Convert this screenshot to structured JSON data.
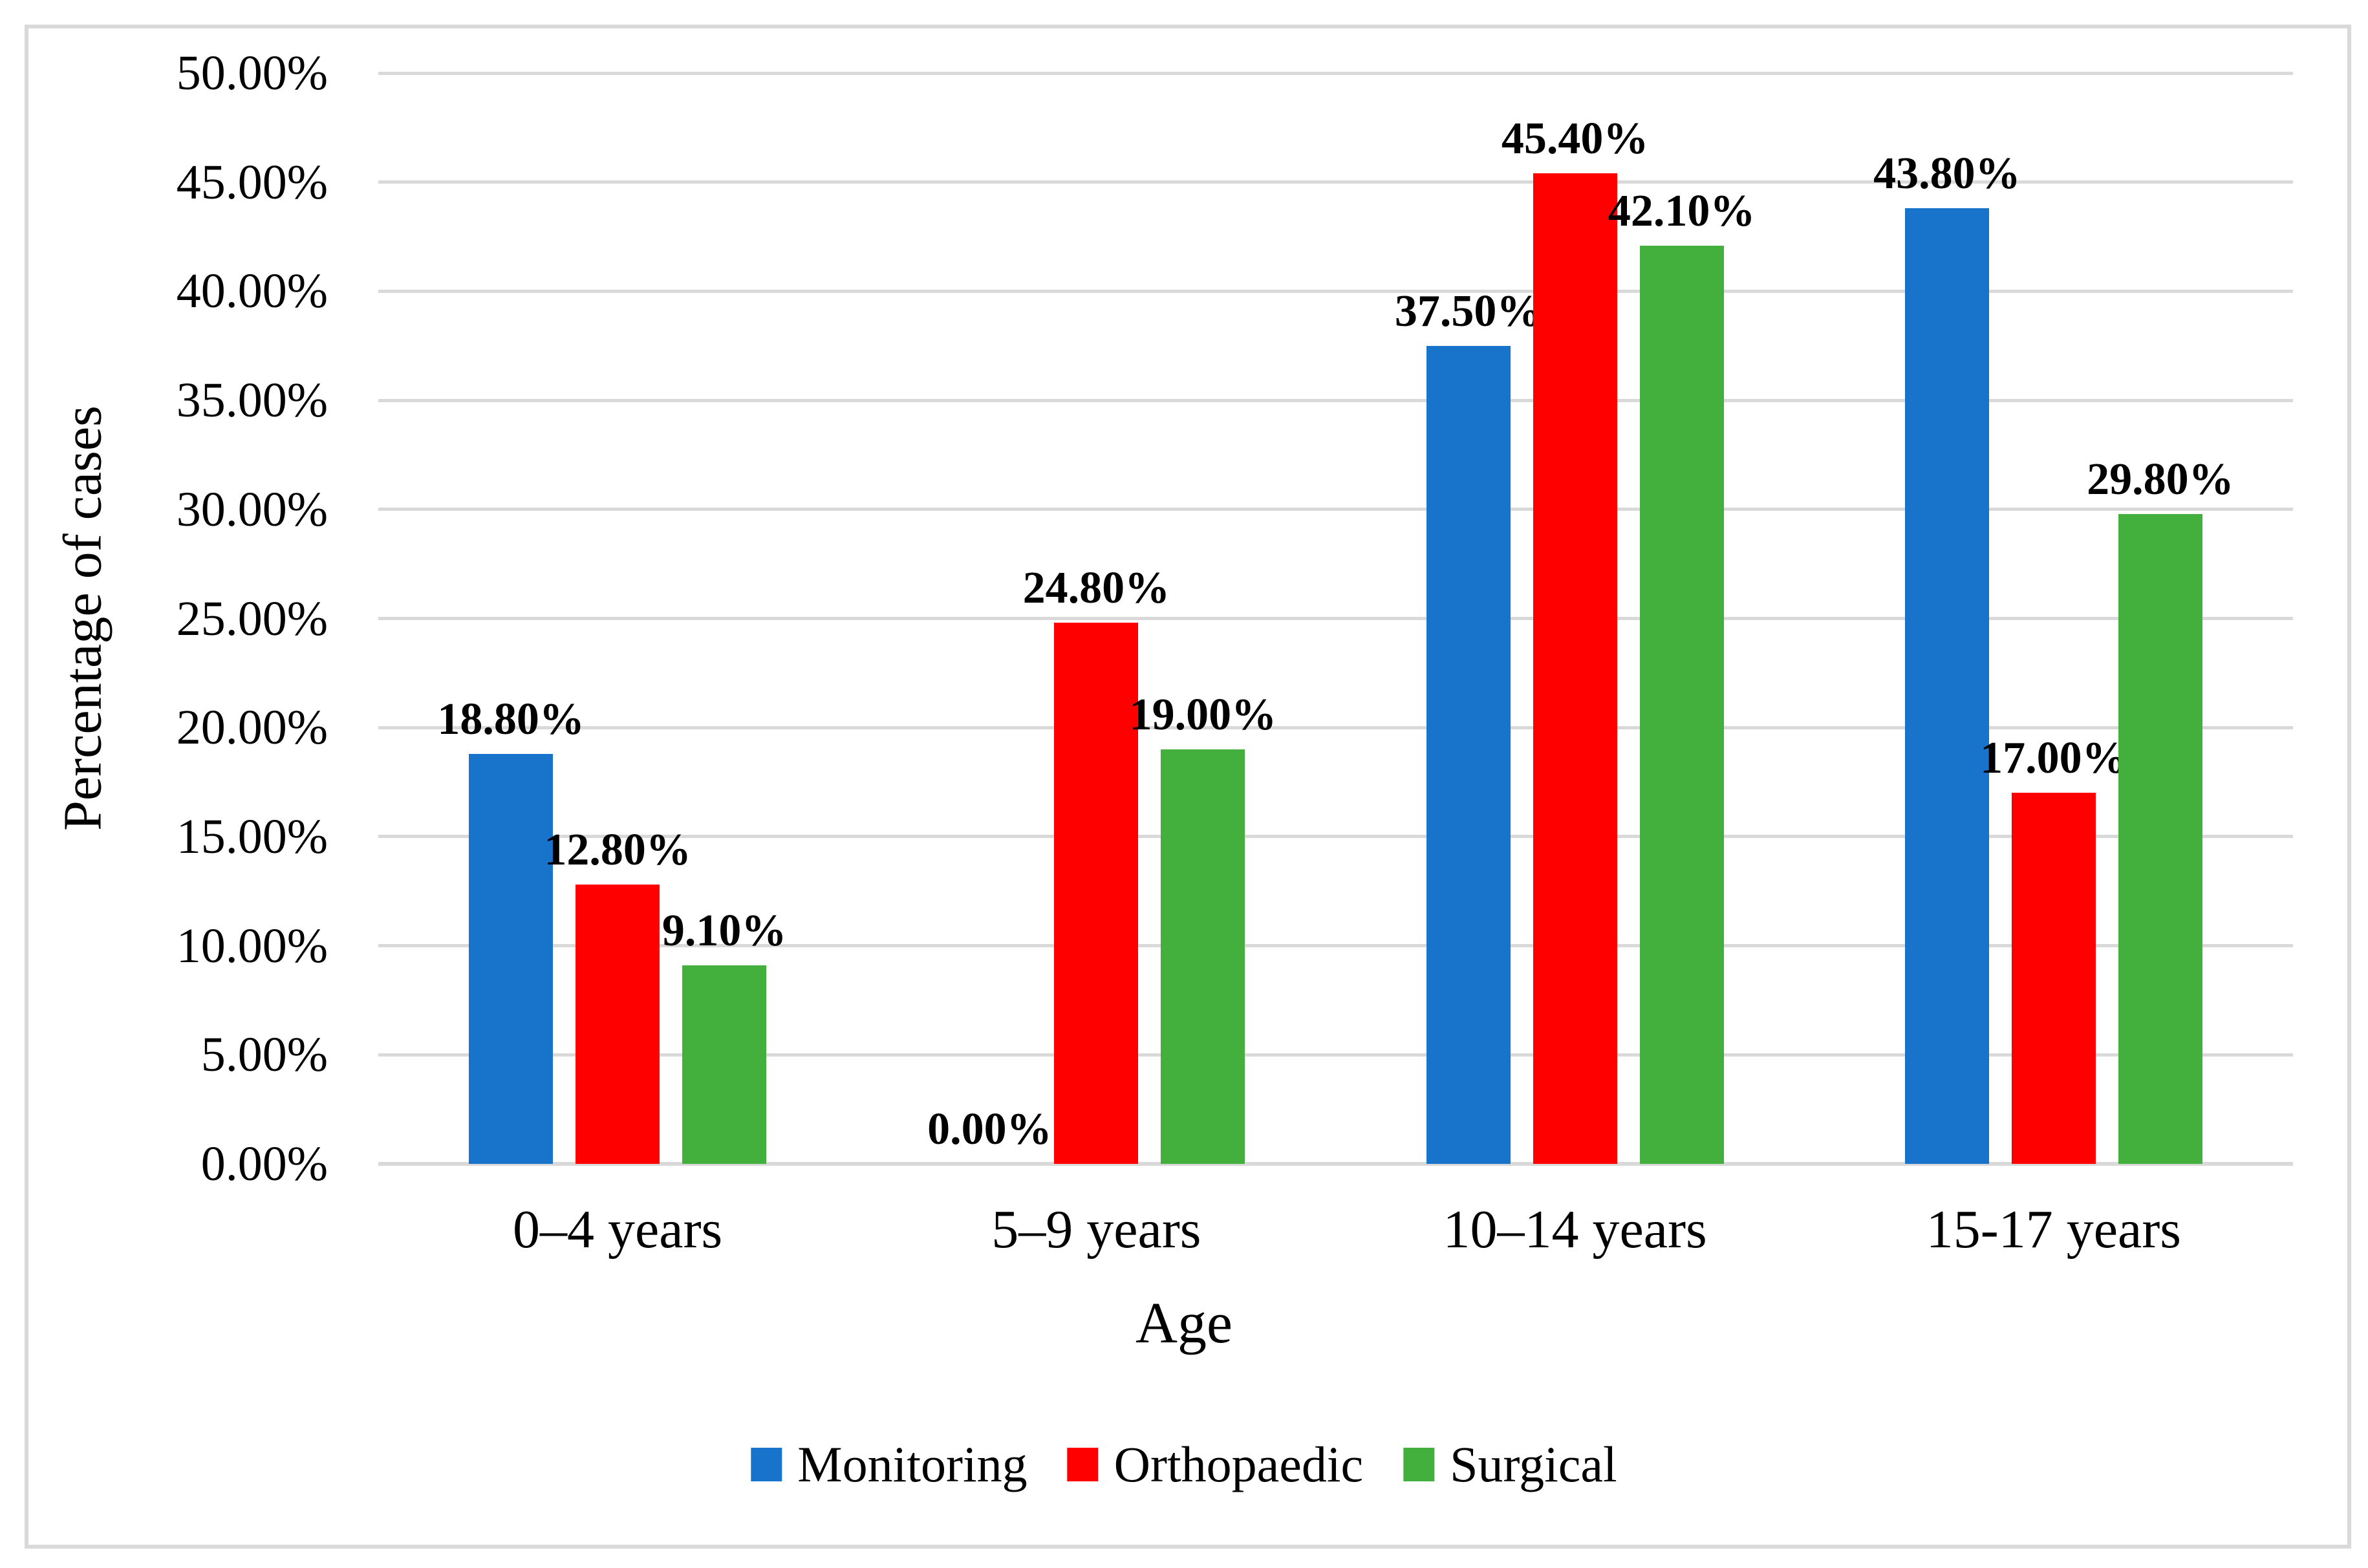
{
  "figure": {
    "border_color": "#d9d9d9",
    "background_color": "#ffffff",
    "text_color": "#000000"
  },
  "chart_data": {
    "type": "bar",
    "title": "",
    "xlabel": "Age",
    "ylabel": "Percentage of cases",
    "categories": [
      "0–4 years",
      "5–9 years",
      "10–14 years",
      "15-17 years"
    ],
    "series": [
      {
        "name": "Monitoring",
        "color": "#1874cb",
        "values": [
          18.8,
          0.0,
          37.5,
          43.8
        ],
        "labels": [
          "18.80%",
          "0.00%",
          "37.50%",
          "43.80%"
        ]
      },
      {
        "name": "Orthopaedic",
        "color": "#ff0000",
        "values": [
          12.8,
          24.8,
          45.4,
          17.0
        ],
        "labels": [
          "12.80%",
          "24.80%",
          "45.40%",
          "17.00%"
        ]
      },
      {
        "name": "Surgical",
        "color": "#43af3c",
        "values": [
          9.1,
          19.0,
          42.1,
          29.8
        ],
        "labels": [
          "9.10%",
          "19.00%",
          "42.10%",
          "29.80%"
        ]
      }
    ],
    "y_axis": {
      "min": 0,
      "max": 50,
      "step": 5,
      "tick_labels": [
        "0.00%",
        "5.00%",
        "10.00%",
        "15.00%",
        "20.00%",
        "25.00%",
        "30.00%",
        "35.00%",
        "40.00%",
        "45.00%",
        "50.00%"
      ]
    },
    "grid": "horizontal",
    "gridline_color": "#d9d9d9",
    "legend_position": "bottom"
  }
}
